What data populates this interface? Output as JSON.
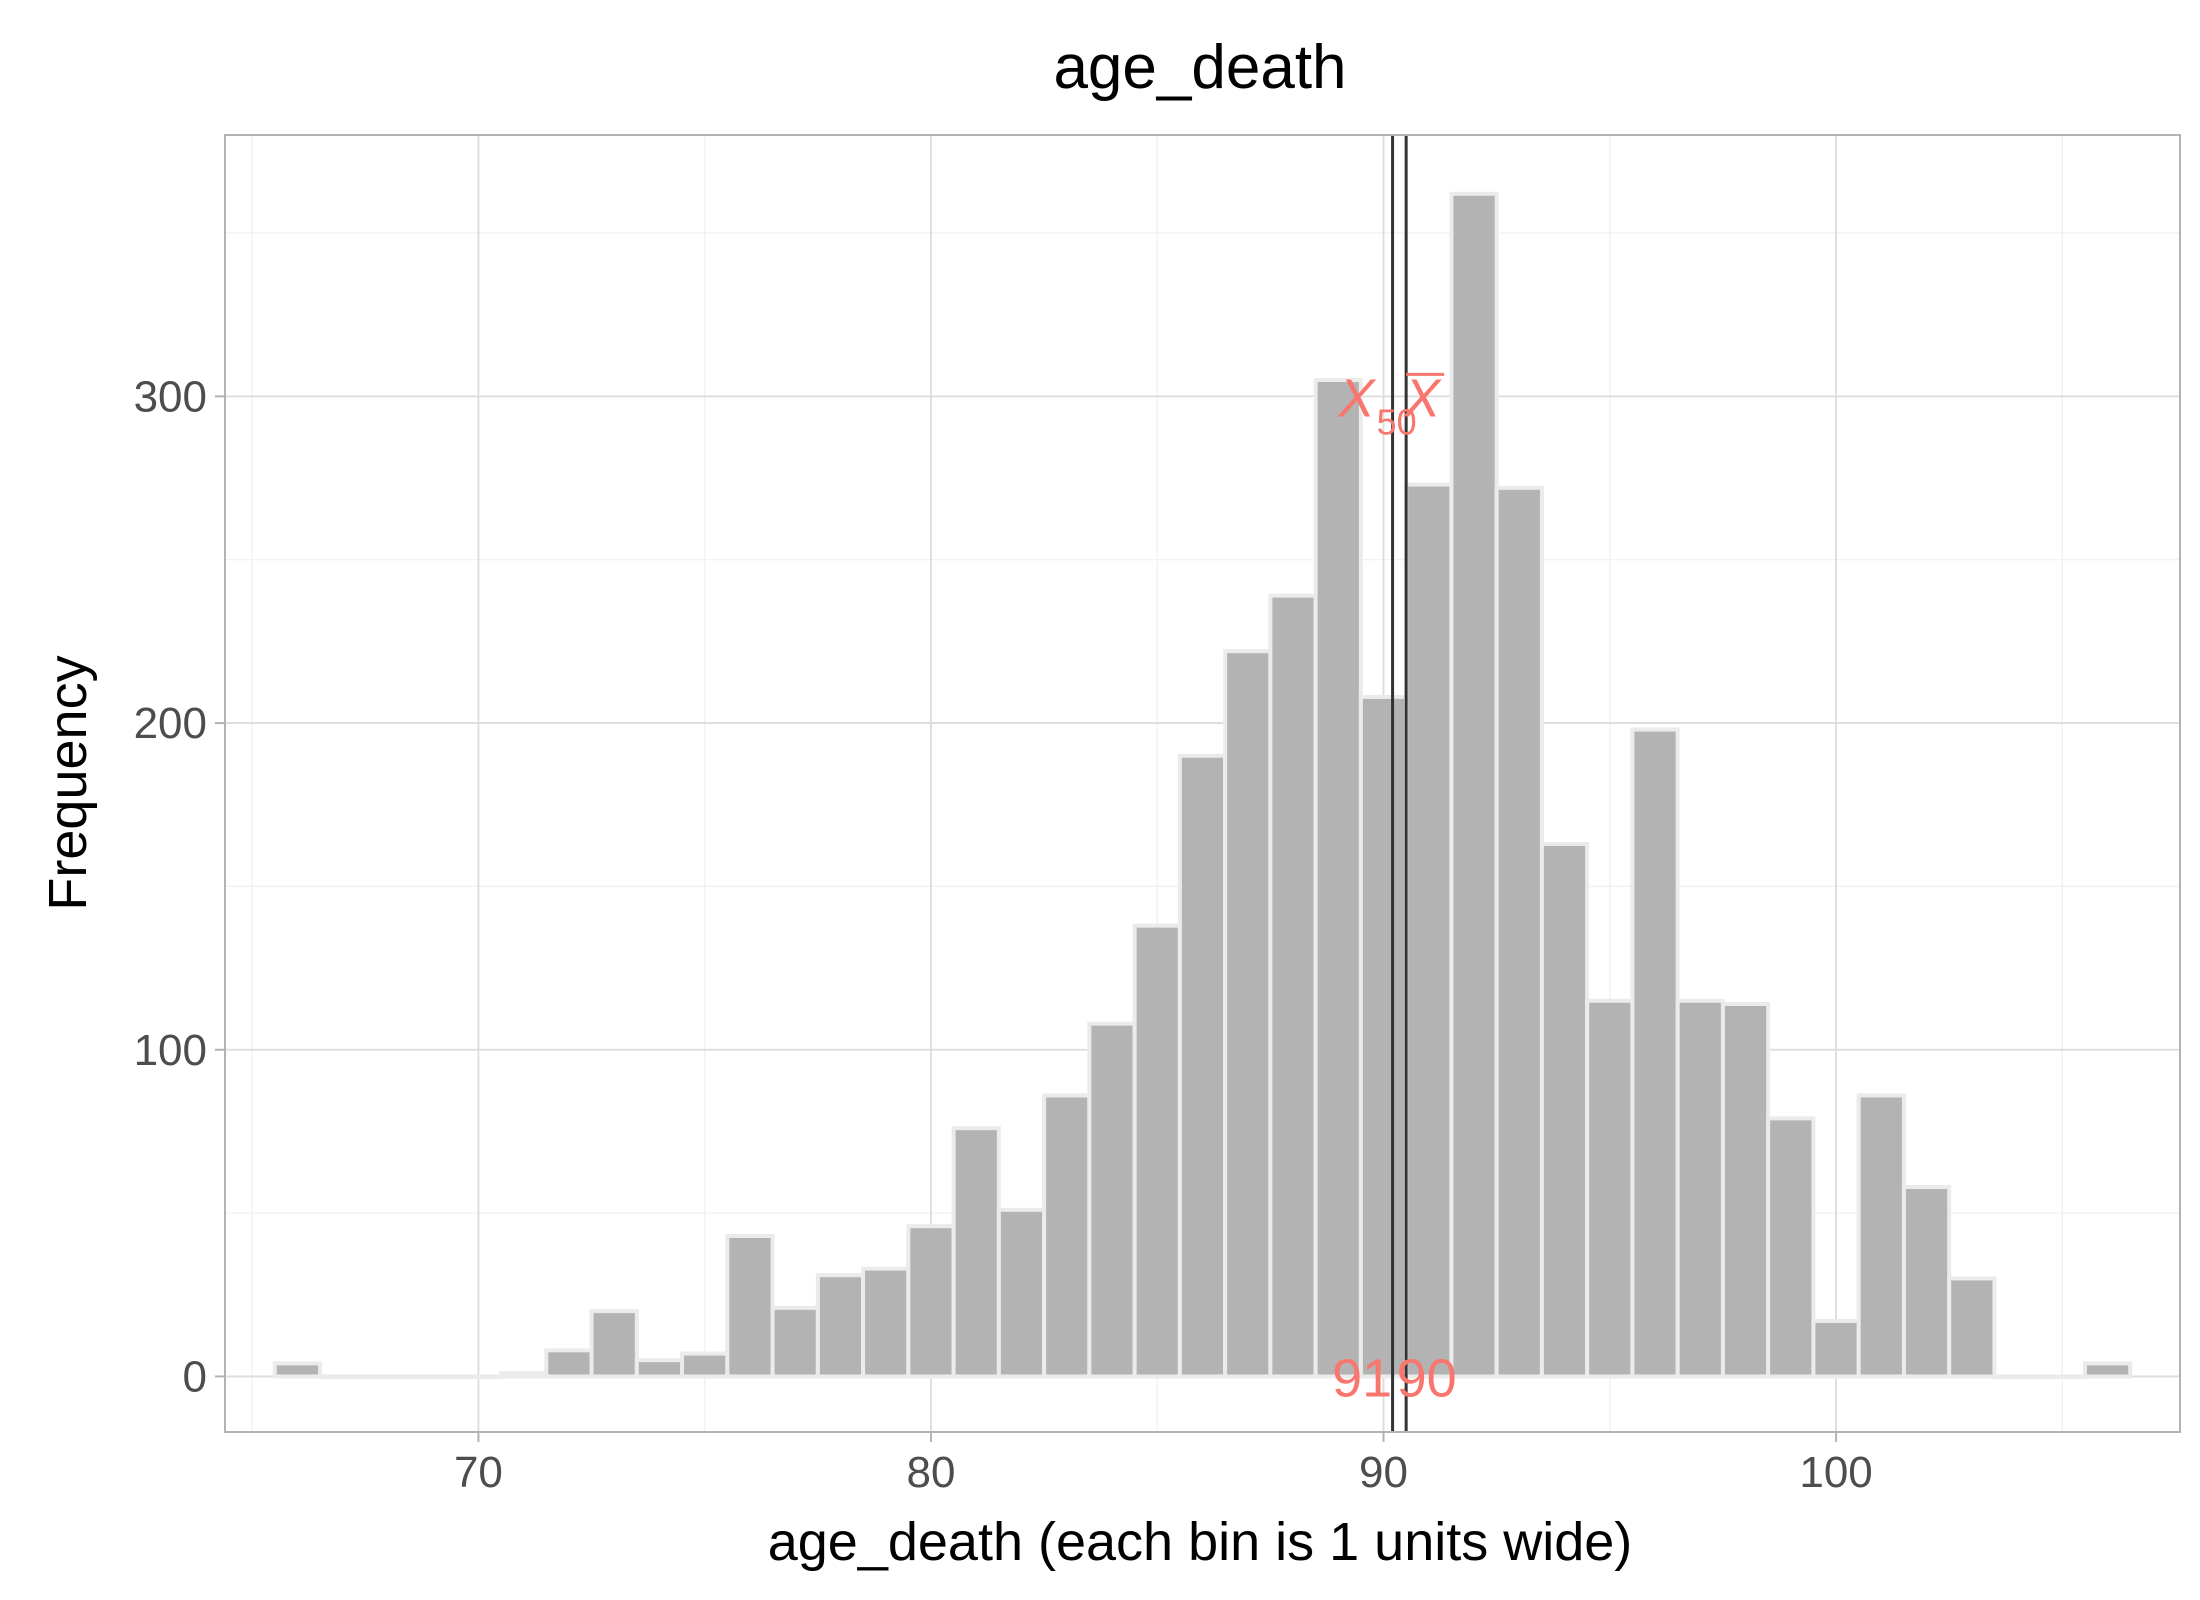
{
  "chart_data": {
    "type": "bar",
    "title": "age_death",
    "xlabel": "age_death (each bin is 1 units wide)",
    "ylabel": "Frequency",
    "xlim": [
      64.4,
      107.6
    ],
    "ylim": [
      -17,
      380
    ],
    "x_ticks": [
      70,
      80,
      90,
      100
    ],
    "x_minor_ticks": [
      65,
      75,
      85,
      95,
      105
    ],
    "y_ticks": [
      0,
      100,
      200,
      300
    ],
    "y_minor_ticks": [
      50,
      150,
      250,
      350
    ],
    "bin_width": 1,
    "bin_starts": [
      65.5,
      66.5,
      67.5,
      68.5,
      69.5,
      70.5,
      71.5,
      72.5,
      73.5,
      74.5,
      75.5,
      76.5,
      77.5,
      78.5,
      79.5,
      80.5,
      81.5,
      82.5,
      83.5,
      84.5,
      85.5,
      86.5,
      87.5,
      88.5,
      89.5,
      90.5,
      91.5,
      92.5,
      93.5,
      94.5,
      95.5,
      96.5,
      97.5,
      98.5,
      99.5,
      100.5,
      101.5,
      102.5,
      103.5,
      104.5,
      105.5
    ],
    "values": [
      4,
      0,
      0,
      0,
      0,
      1,
      8,
      20,
      5,
      7,
      43,
      21,
      31,
      33,
      46,
      76,
      51,
      86,
      108,
      138,
      190,
      222,
      239,
      305,
      208,
      273,
      362,
      272,
      163,
      115,
      198,
      115,
      114,
      79,
      17,
      86,
      58,
      30,
      0,
      0,
      4
    ],
    "bar_fill": "#b3b3b3",
    "bar_outline": "#ebebeb",
    "grid": true,
    "vlines": [
      {
        "x": 90.2,
        "label": "median",
        "color": "#333333"
      },
      {
        "x": 90.5,
        "label": "mean",
        "color": "#333333"
      }
    ],
    "annotations": {
      "color": "#f8766d",
      "median_symbol": "X",
      "median_subscript": "50",
      "mean_symbol": "X",
      "median_value": "90",
      "mean_value": "91",
      "symbol_y": 300,
      "value_y": 0
    }
  }
}
